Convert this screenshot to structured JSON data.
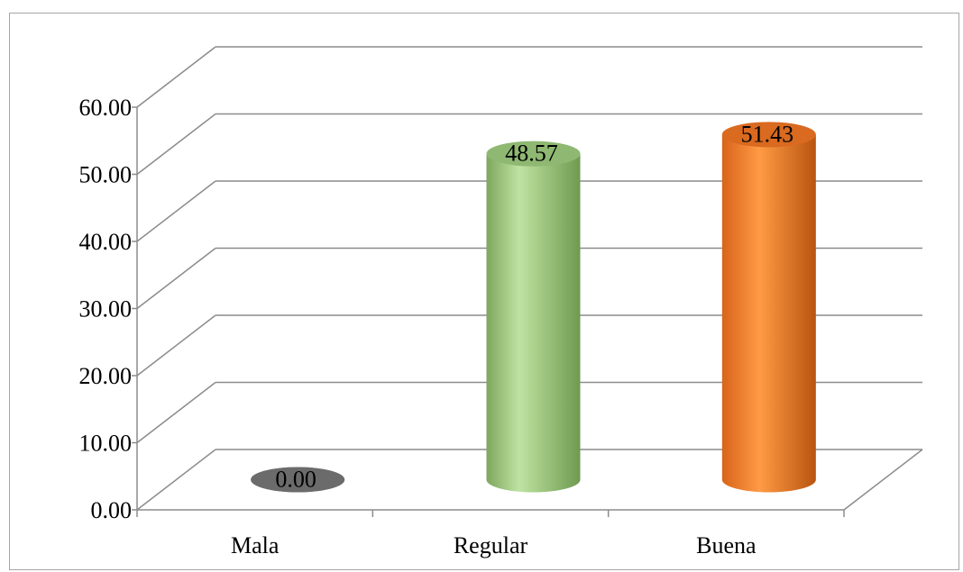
{
  "chart_data": {
    "type": "bar",
    "style": "3d-cylinder",
    "categories": [
      "Mala",
      "Regular",
      "Buena"
    ],
    "values": [
      0.0,
      48.57,
      51.43
    ],
    "data_labels": [
      "0.00",
      "48.57",
      "51.43"
    ],
    "ylim": [
      0,
      60
    ],
    "yticks": [
      "0.00",
      "10.00",
      "20.00",
      "30.00",
      "40.00",
      "50.00",
      "60.00"
    ],
    "grid": true,
    "legend": "none",
    "title": "",
    "xlabel": "",
    "ylabel": "",
    "colors": {
      "Mala": "#7f7f7f",
      "Regular": "#a9d18e",
      "Buena": "#f4842c"
    }
  }
}
